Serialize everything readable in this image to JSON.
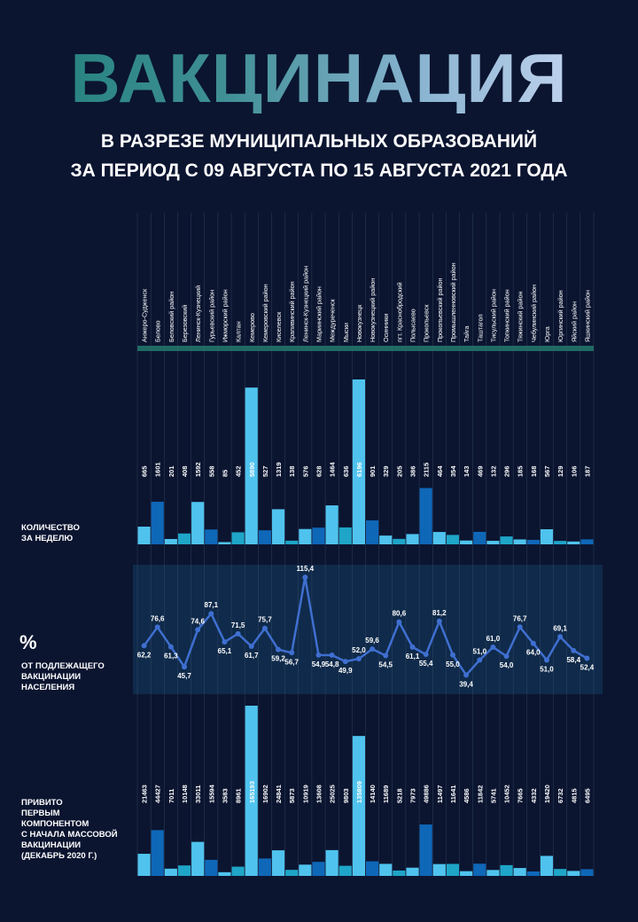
{
  "title": "ВАКЦИНАЦИЯ",
  "subtitle_line1": "В РАЗРЕЗЕ МУНИЦИПАЛЬНЫХ ОБРАЗОВАНИЙ",
  "subtitle_line2": "ЗА ПЕРИОД С 09 АВГУСТА ПО 15 АВГУСТА 2021 ГОДА",
  "labels": {
    "weekly_line1": "КОЛИЧЕСТВО",
    "weekly_line2": "ЗА НЕДЕЛЮ",
    "percent_symbol": "%",
    "percent_line1": "ОТ ПОДЛЕЖАЩЕГО",
    "percent_line2": "ВАКЦИНАЦИИ",
    "percent_line3": "НАСЕЛЕНИЯ",
    "total_line1": "ПРИВИТО",
    "total_line2": "ПЕРВЫМ",
    "total_line3": "КОМПОНЕНТОМ",
    "total_line4": "С НАЧАЛА МАССОВОЙ",
    "total_line5": "ВАКЦИНАЦИИ",
    "total_line6": "(ДЕКАБРЬ 2020 Г.)"
  },
  "colors": {
    "background": "#0b1530",
    "panel": "#0f2a4a",
    "line": "#3f6fd0",
    "bar_dark": "#0f67b8",
    "bar_mid": "#1ea5c8",
    "bar_light": "#4fc3ee",
    "header_bar": "#1f6b63"
  },
  "chart_data": {
    "type": "bar",
    "categories": [
      "Анжеро-Судженск",
      "Белово",
      "Беловский район",
      "Березовский",
      "Ленинск-Кузнецкий",
      "Гурьевский район",
      "Ижморский район",
      "Калтан",
      "Кемерово",
      "Кемеровский район",
      "Киселевск",
      "Крапивинский район",
      "Ленинск-Кузнецкий район",
      "Мариинский район",
      "Междуреченск",
      "Мыски",
      "Новокузнецк",
      "Новокузнецкий район",
      "Осинники",
      "пгт. Краснобродский",
      "Полысаево",
      "Прокопьевск",
      "Прокопьевский район",
      "Промышленновский район",
      "Тайга",
      "Таштагол",
      "Тисульский район",
      "Топкинский район",
      "Тяжинский район",
      "Чебулинский район",
      "Юрга",
      "Юргинский район",
      "Яйский район",
      "Яшкинский район"
    ],
    "series": [
      {
        "values": [
          665,
          1601,
          201,
          408,
          1592,
          558,
          85,
          452,
          5890,
          527,
          1319,
          138,
          576,
          628,
          1464,
          636,
          6196,
          901,
          329,
          205,
          386,
          2115,
          464,
          354,
          143,
          469,
          132,
          296,
          185,
          168,
          567,
          129,
          106,
          187
        ]
      },
      {
        "values": [
          62.2,
          76.6,
          61.3,
          45.7,
          74.6,
          87.1,
          65.1,
          71.5,
          61.7,
          75.7,
          59.2,
          56.7,
          115.4,
          54.9,
          54.8,
          49.9,
          52.0,
          59.6,
          54.5,
          80.6,
          61.1,
          55.4,
          81.2,
          55.0,
          39.4,
          51.0,
          61.0,
          54.0,
          76.7,
          64.0,
          51.0,
          69.1,
          58.4,
          52.4
        ]
      },
      {
        "values": [
          21463,
          44427,
          7011,
          10148,
          33011,
          15594,
          3583,
          8961,
          165193,
          16902,
          24841,
          5873,
          10919,
          13608,
          25025,
          9803,
          135809,
          14140,
          11689,
          5218,
          7973,
          49886,
          11497,
          11641,
          4586,
          11842,
          5741,
          10452,
          7665,
          4332,
          19420,
          6732,
          4815,
          6495
        ]
      }
    ]
  }
}
